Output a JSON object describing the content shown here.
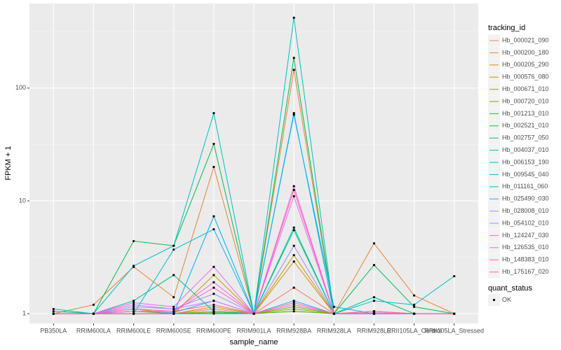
{
  "chart_data": {
    "type": "line",
    "x_label": "sample_name",
    "y_label": "FPKM + 1",
    "log_y": true,
    "grid": true,
    "legend_position": "right",
    "legend_title": "tracking_id",
    "points": {
      "title": "quant_status",
      "label": "OK",
      "color": "#000000"
    },
    "ylim": [
      0.82,
      562
    ],
    "yticks": [
      1,
      10,
      100
    ],
    "categories": [
      "PB350LA",
      "RRIM600LA",
      "RRIM600LE",
      "RRIM600SE",
      "RRIM600PE",
      "RRIM901LA",
      "RRIM928BA",
      "RRIM928LA",
      "RRIM928LE",
      "RRII105LA_Control",
      "RRII105LA_Stressed"
    ],
    "series": [
      {
        "name": "Hb_000021_090",
        "color": "#F8766D",
        "values": [
          1,
          1,
          1.1,
          1.05,
          1.2,
          1,
          1.7,
          1,
          1,
          1,
          1
        ]
      },
      {
        "name": "Hb_000200_180",
        "color": "#EA8331",
        "values": [
          1,
          1.2,
          2.6,
          1.4,
          20,
          1,
          145,
          1,
          4.2,
          1.45,
          1
        ]
      },
      {
        "name": "Hb_000205_290",
        "color": "#D89000",
        "values": [
          1,
          1,
          1.05,
          1,
          1.15,
          1,
          2.9,
          1,
          1.05,
          1,
          1
        ]
      },
      {
        "name": "Hb_000576_080",
        "color": "#C09B00",
        "values": [
          1,
          1,
          1.1,
          1,
          2.2,
          1,
          3.3,
          1,
          1,
          1,
          1
        ]
      },
      {
        "name": "Hb_000671_010",
        "color": "#A3A500",
        "values": [
          1,
          1,
          1,
          1,
          1.05,
          1,
          1.1,
          1,
          1,
          1,
          1
        ]
      },
      {
        "name": "Hb_000720_010",
        "color": "#7CAE00",
        "values": [
          1,
          1,
          1,
          1,
          1.02,
          1,
          1.15,
          1,
          1,
          1,
          1
        ]
      },
      {
        "name": "Hb_001213_010",
        "color": "#39B600",
        "values": [
          1,
          1,
          1,
          1,
          1.02,
          1,
          1.05,
          1,
          1,
          1,
          1
        ]
      },
      {
        "name": "Hb_002521_010",
        "color": "#00BB4E",
        "values": [
          1,
          1,
          4.4,
          4,
          32,
          1,
          185,
          1,
          2.7,
          1.15,
          1
        ]
      },
      {
        "name": "Hb_002757_050",
        "color": "#00BF7D",
        "values": [
          1.05,
          1,
          1.3,
          2.2,
          1.05,
          1,
          5.5,
          1,
          1.4,
          1,
          1
        ]
      },
      {
        "name": "Hb_004037_010",
        "color": "#00C1A3",
        "values": [
          1,
          1,
          1,
          1,
          1,
          1,
          5.8,
          1,
          1,
          1,
          1
        ]
      },
      {
        "name": "Hb_006153_190",
        "color": "#00BFC4",
        "values": [
          1.1,
          1,
          2.65,
          4,
          60,
          1,
          420,
          1,
          1.3,
          1.2,
          2.15
        ]
      },
      {
        "name": "Hb_009545_040",
        "color": "#00BAE0",
        "values": [
          1,
          1,
          1,
          3.7,
          5.6,
          1,
          58,
          1.15,
          1,
          1,
          1
        ]
      },
      {
        "name": "Hb_011161_060",
        "color": "#00B0F6",
        "values": [
          1,
          1,
          1,
          1,
          7.3,
          1,
          60,
          1,
          1,
          1,
          1
        ]
      },
      {
        "name": "Hb_025490_030",
        "color": "#35A2FF",
        "values": [
          1,
          1,
          1.05,
          1.02,
          1.3,
          1,
          1.3,
          1,
          1,
          1,
          1
        ]
      },
      {
        "name": "Hb_028008_010",
        "color": "#9590FF",
        "values": [
          1,
          1,
          1.15,
          1.1,
          1.5,
          1,
          4,
          1,
          1,
          1,
          1
        ]
      },
      {
        "name": "Hb_054102_010",
        "color": "#C77CFF",
        "values": [
          1,
          1,
          1.2,
          1.1,
          1.3,
          1,
          1.2,
          1,
          1.02,
          1,
          1
        ]
      },
      {
        "name": "Hb_124247_030",
        "color": "#E76BF3",
        "values": [
          1,
          1,
          1.25,
          1.15,
          2.6,
          1,
          11,
          1,
          1,
          1,
          1
        ]
      },
      {
        "name": "Hb_126535_010",
        "color": "#FA62DB",
        "values": [
          1,
          1,
          1.05,
          1.05,
          1.9,
          1,
          13.5,
          1,
          1,
          1,
          1
        ]
      },
      {
        "name": "Hb_148383_010",
        "color": "#FF62BC",
        "values": [
          1,
          1,
          1.1,
          1.05,
          1.7,
          1,
          12.5,
          1,
          1.05,
          1,
          1
        ]
      },
      {
        "name": "Hb_175167_020",
        "color": "#FF6C91",
        "values": [
          1,
          1,
          1,
          1,
          1.1,
          1,
          1.25,
          1,
          1.05,
          1,
          1
        ]
      }
    ]
  }
}
